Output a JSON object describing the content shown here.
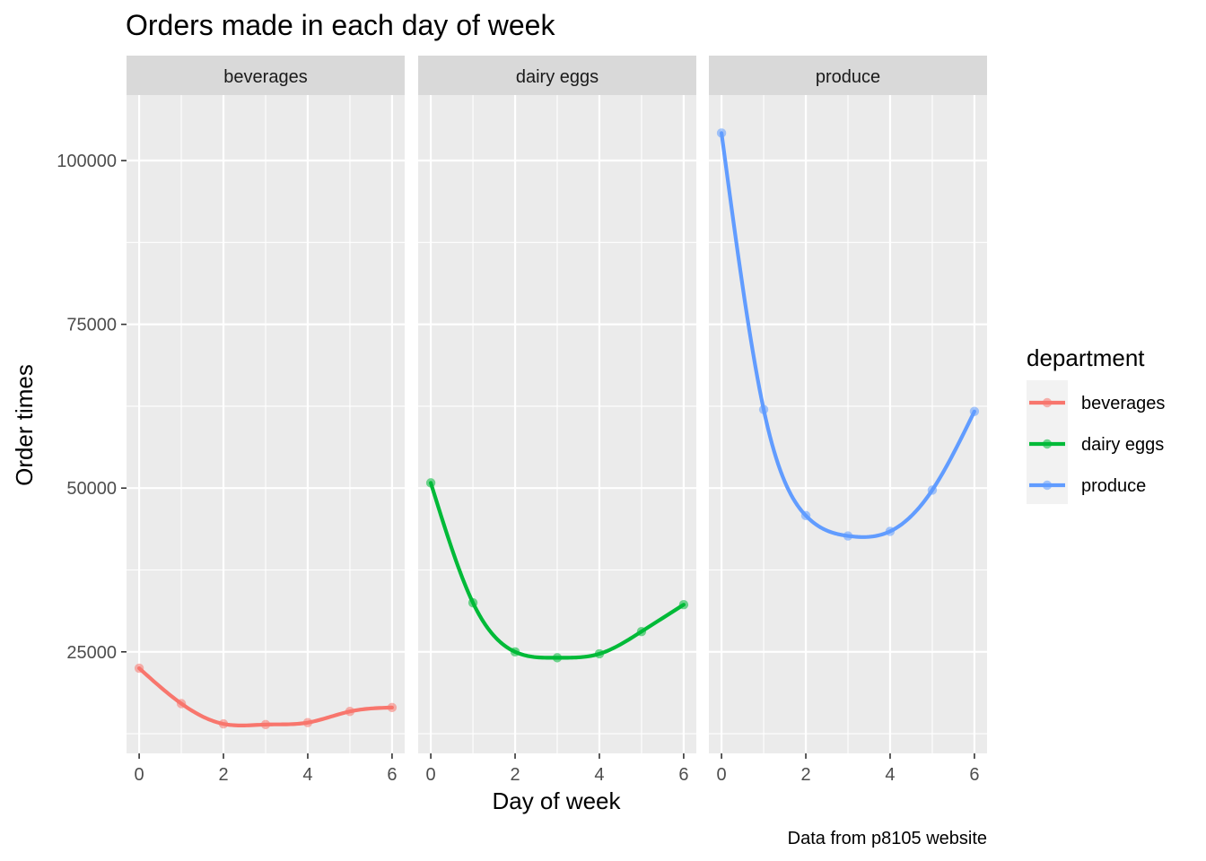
{
  "chart_data": {
    "type": "line",
    "title": "Orders made in each day of week",
    "xlabel": "Day of week",
    "ylabel": "Order times",
    "caption": "Data from p8105 website",
    "xlim": [
      -0.3,
      6.3
    ],
    "ylim": [
      9500,
      110000
    ],
    "x_ticks": [
      0,
      2,
      4,
      6
    ],
    "y_ticks": [
      25000,
      50000,
      75000,
      100000
    ],
    "grid": true,
    "legend": {
      "title": "department",
      "position": "right"
    },
    "facets": [
      "beverages",
      "dairy eggs",
      "produce"
    ],
    "series": [
      {
        "name": "beverages",
        "color": "#F8766D",
        "x": [
          0,
          1,
          2,
          3,
          4,
          5,
          6
        ],
        "values": [
          22500,
          17100,
          14000,
          13900,
          14200,
          15900,
          16500
        ]
      },
      {
        "name": "dairy eggs",
        "color": "#00BA38",
        "x": [
          0,
          1,
          2,
          3,
          4,
          5,
          6
        ],
        "values": [
          50800,
          32500,
          25000,
          24100,
          24700,
          28100,
          32200
        ]
      },
      {
        "name": "produce",
        "color": "#619CFF",
        "x": [
          0,
          1,
          2,
          3,
          4,
          5,
          6
        ],
        "values": [
          104200,
          62000,
          45800,
          42700,
          43400,
          49700,
          61700
        ]
      }
    ]
  }
}
